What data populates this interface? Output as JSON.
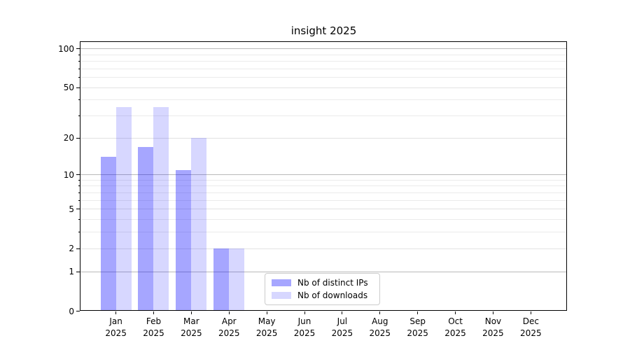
{
  "chart_data": {
    "type": "bar",
    "title": "insight 2025",
    "months": [
      "Jan",
      "Feb",
      "Mar",
      "Apr",
      "May",
      "Jun",
      "Jul",
      "Aug",
      "Sep",
      "Oct",
      "Nov",
      "Dec"
    ],
    "year_label": "2025",
    "series": [
      {
        "name": "Nb of distinct IPs",
        "color": "rgba(0,0,255,0.35)",
        "values": [
          14,
          17,
          11,
          2,
          0,
          0,
          0,
          0,
          0,
          0,
          0,
          0
        ]
      },
      {
        "name": "Nb of downloads",
        "color": "rgba(0,0,255,0.155)",
        "values": [
          35,
          35,
          20,
          2,
          0,
          0,
          0,
          0,
          0,
          0,
          0,
          0
        ]
      }
    ],
    "y_scale": "log1p",
    "y_ticks_major": [
      0,
      1,
      2,
      5,
      10,
      20,
      50,
      100
    ],
    "y_ticks_minor": [
      3,
      4,
      6,
      7,
      8,
      9,
      30,
      40,
      60,
      70,
      80,
      90
    ],
    "y_ticks_emphasized": [
      1,
      10,
      100
    ],
    "ylim": [
      0,
      114
    ],
    "xlabel": "",
    "ylabel": "",
    "grid": true,
    "legend_location": "lower center",
    "background_color": "#ffffff"
  }
}
